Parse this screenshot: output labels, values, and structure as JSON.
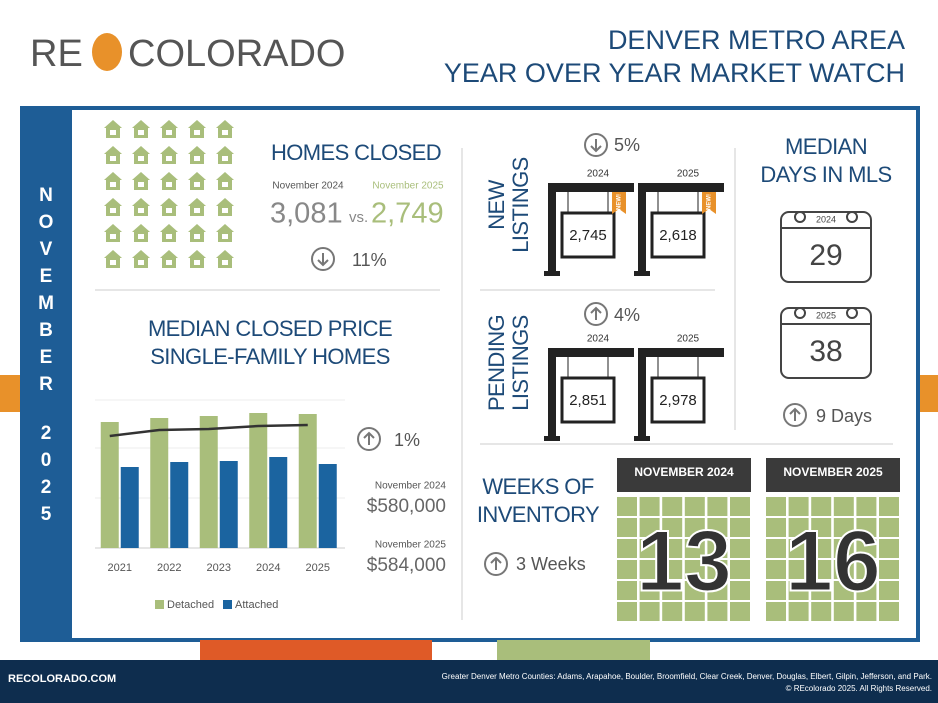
{
  "header": {
    "logo_left": "RE",
    "logo_right": "COLORADO",
    "title_line1": "DENVER METRO AREA",
    "title_line2": "YEAR OVER YEAR MARKET WATCH"
  },
  "side": {
    "month": "NOVEMBER",
    "year": "2025"
  },
  "homes_closed": {
    "title": "HOMES CLOSED",
    "label_2024": "November 2024",
    "label_2025": "November 2025",
    "value_2024": "3,081",
    "vs": "vs.",
    "value_2025": "2,749",
    "change": "11%",
    "direction": "down"
  },
  "median_price": {
    "title_line1": "MEDIAN CLOSED PRICE",
    "title_line2": "SINGLE-FAMILY HOMES",
    "change": "1%",
    "direction": "up",
    "label_2024": "November 2024",
    "value_2024": "$580,000",
    "label_2025": "November 2025",
    "value_2025": "$584,000",
    "chart": {
      "type": "bar",
      "categories": [
        "2021",
        "2022",
        "2023",
        "2024",
        "2025"
      ],
      "series": [
        {
          "name": "Detached",
          "color": "#a9be7b",
          "values": [
            126,
            130,
            132,
            135,
            134
          ]
        },
        {
          "name": "Attached",
          "color": "#1b64a0",
          "values": [
            81,
            86,
            87,
            91,
            84
          ]
        }
      ],
      "trend": {
        "color": "#333333",
        "values": [
          112,
          118,
          119,
          122,
          123
        ]
      }
    }
  },
  "new_listings": {
    "title_line1": "NEW",
    "title_line2": "LISTINGS",
    "change": "5%",
    "direction": "down",
    "year_2024": "2024",
    "value_2024": "2,745",
    "year_2025": "2025",
    "value_2025": "2,618",
    "badge": "NEW!"
  },
  "pending_listings": {
    "title_line1": "PENDING",
    "title_line2": "LISTINGS",
    "change": "4%",
    "direction": "up",
    "year_2024": "2024",
    "value_2024": "2,851",
    "year_2025": "2025",
    "value_2025": "2,978"
  },
  "days_in_mls": {
    "title_line1": "MEDIAN",
    "title_line2": "DAYS IN MLS",
    "year_2024": "2024",
    "value_2024": "29",
    "year_2025": "2025",
    "value_2025": "38",
    "change": "9 Days",
    "direction": "up"
  },
  "inventory": {
    "title_line1": "WEEKS OF",
    "title_line2": "INVENTORY",
    "change": "3 Weeks",
    "direction": "up",
    "label_2024": "NOVEMBER 2024",
    "value_2024": "13",
    "label_2025": "NOVEMBER 2025",
    "value_2025": "16"
  },
  "footer": {
    "site": "RECOLORADO.COM",
    "counties": "Greater Denver Metro Counties: Adams, Arapahoe, Boulder, Broomfield, Clear Creek, Denver, Douglas, Elbert, Gilpin, Jefferson, and Park.",
    "copyright": "© REcolorado 2025. All Rights Reserved."
  }
}
